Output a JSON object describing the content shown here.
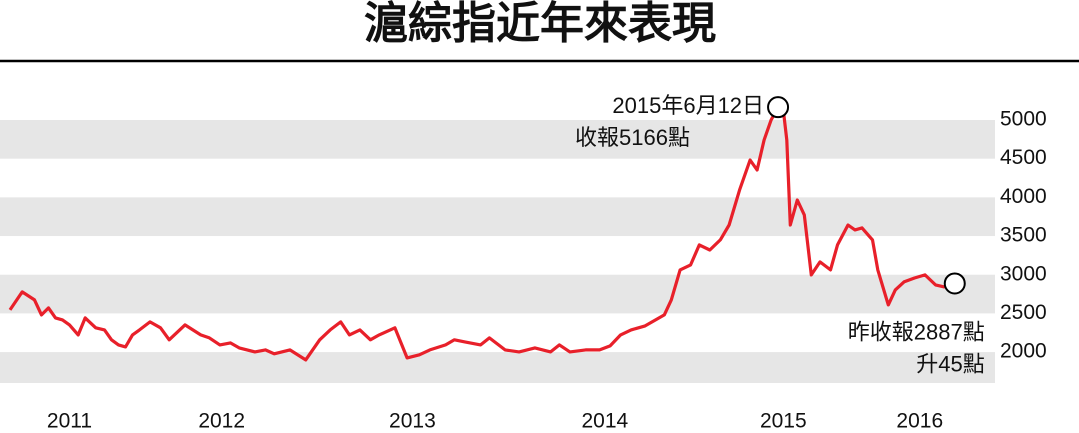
{
  "chart_data": {
    "type": "line",
    "title": "滬綜指近年來表現",
    "x": [
      2011.0,
      2011.07,
      2011.14,
      2011.18,
      2011.22,
      2011.26,
      2011.3,
      2011.34,
      2011.39,
      2011.43,
      2011.49,
      2011.54,
      2011.58,
      2011.62,
      2011.66,
      2011.7,
      2011.74,
      2011.8,
      2011.86,
      2011.91,
      2012.0,
      2012.09,
      2012.14,
      2012.2,
      2012.26,
      2012.31,
      2012.4,
      2012.46,
      2012.51,
      2012.6,
      2012.69,
      2012.77,
      2012.83,
      2012.89,
      2012.94,
      2013.0,
      2013.06,
      2013.11,
      2013.2,
      2013.27,
      2013.34,
      2013.4,
      2013.49,
      2013.54,
      2013.6,
      2013.69,
      2013.74,
      2013.83,
      2013.91,
      2014.0,
      2014.09,
      2014.14,
      2014.2,
      2014.29,
      2014.37,
      2014.43,
      2014.49,
      2014.55,
      2014.63,
      2014.69,
      2014.74,
      2014.78,
      2014.83,
      2014.89,
      2014.94,
      2015.0,
      2015.06,
      2015.11,
      2015.17,
      2015.23,
      2015.27,
      2015.31,
      2015.35,
      2015.39,
      2015.42,
      2015.44,
      2015.46,
      2015.5,
      2015.54,
      2015.58,
      2015.63,
      2015.69,
      2015.73,
      2015.79,
      2015.83,
      2015.87,
      2015.93,
      2015.96,
      2016.02,
      2016.06,
      2016.11,
      2016.17,
      2016.23,
      2016.29,
      2016.34,
      2016.4
    ],
    "series": [
      {
        "name": "滬綜指",
        "color": "#e8202a",
        "values": [
          2545,
          2778,
          2674,
          2481,
          2571,
          2442,
          2416,
          2351,
          2222,
          2442,
          2313,
          2287,
          2158,
          2093,
          2067,
          2222,
          2287,
          2390,
          2313,
          2158,
          2351,
          2222,
          2183,
          2093,
          2119,
          2054,
          2002,
          2028,
          1977,
          2028,
          1899,
          2158,
          2287,
          2390,
          2222,
          2287,
          2158,
          2222,
          2313,
          1925,
          1964,
          2028,
          2093,
          2158,
          2132,
          2093,
          2183,
          2028,
          2002,
          2054,
          2002,
          2093,
          2002,
          2028,
          2028,
          2080,
          2222,
          2287,
          2338,
          2416,
          2481,
          2674,
          3062,
          3127,
          3385,
          3320,
          3450,
          3643,
          4096,
          4483,
          4354,
          4742,
          5000,
          5166,
          5129,
          4742,
          3643,
          3966,
          3773,
          2997,
          3165,
          3062,
          3385,
          3643,
          3579,
          3605,
          3450,
          3062,
          2610,
          2804,
          2907,
          2958,
          2997,
          2868,
          2842,
          2887
        ]
      }
    ],
    "xlim": [
      2011,
      2016.63
    ],
    "xticks": [
      {
        "value": 2011.34,
        "label": "2011"
      },
      {
        "value": 2012.21,
        "label": "2012"
      },
      {
        "value": 2013.3,
        "label": "2013"
      },
      {
        "value": 2014.4,
        "label": "2014"
      },
      {
        "value": 2015.42,
        "label": "2015"
      },
      {
        "value": 2016.2,
        "label": "2016"
      }
    ],
    "ylim": [
      1600,
      5750
    ],
    "yticks": [
      2000,
      2500,
      3000,
      3500,
      4000,
      4500,
      5000
    ],
    "annotations": [
      {
        "lines": [
          "2015年6月12日",
          "收報5166點"
        ],
        "point": 73
      },
      {
        "lines": [
          "昨收報2887點",
          "升45點"
        ],
        "point": 95
      }
    ]
  }
}
